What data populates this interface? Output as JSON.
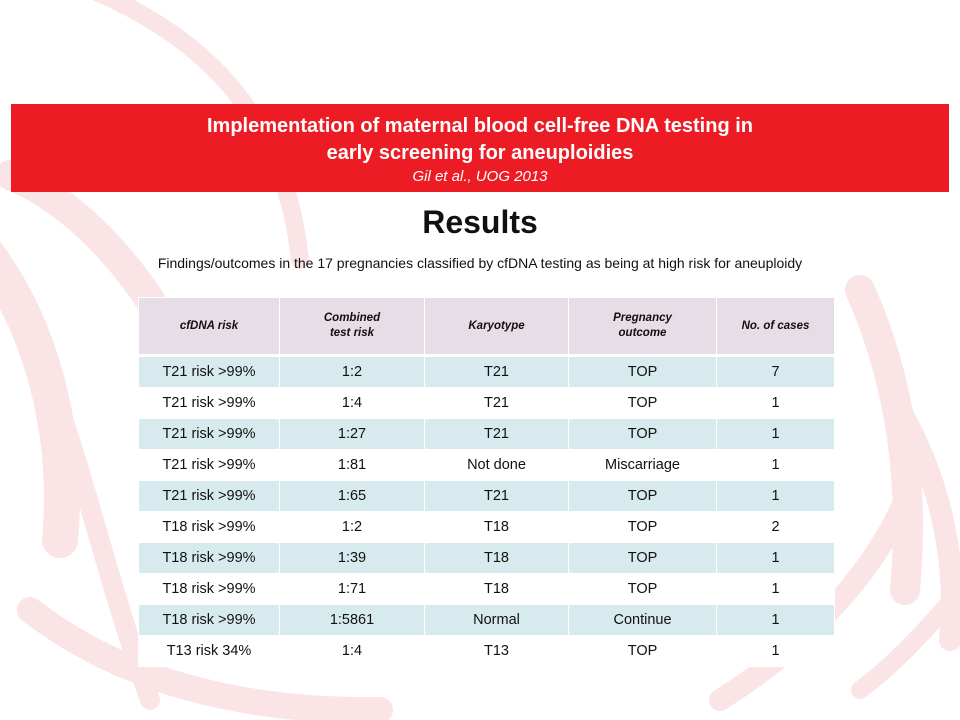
{
  "banner": {
    "title_line1": "Implementation of maternal blood cell-free DNA testing in",
    "title_line2": "early screening for aneuploidies",
    "citation": "Gil et al., UOG 2013"
  },
  "heading": "Results",
  "subtitle": "Findings/outcomes in the 17 pregnancies classified by cfDNA testing as being at high risk for aneuploidy",
  "table": {
    "headers": [
      {
        "line1": "cfDNA risk",
        "line2": ""
      },
      {
        "line1": "Combined",
        "line2": "test risk"
      },
      {
        "line1": "Karyotype",
        "line2": ""
      },
      {
        "line1": "Pregnancy",
        "line2": "outcome"
      },
      {
        "line1": "No. of cases",
        "line2": ""
      }
    ],
    "rows": [
      [
        "T21 risk >99%",
        "1:2",
        "T21",
        "TOP",
        "7"
      ],
      [
        "T21 risk >99%",
        "1:4",
        "T21",
        "TOP",
        "1"
      ],
      [
        "T21 risk >99%",
        "1:27",
        "T21",
        "TOP",
        "1"
      ],
      [
        "T21 risk >99%",
        "1:81",
        "Not done",
        "Miscarriage",
        "1"
      ],
      [
        "T21 risk >99%",
        "1:65",
        "T21",
        "TOP",
        "1"
      ],
      [
        "T18 risk >99%",
        "1:2",
        "T18",
        "TOP",
        "2"
      ],
      [
        "T18 risk >99%",
        "1:39",
        "T18",
        "TOP",
        "1"
      ],
      [
        "T18 risk >99%",
        "1:71",
        "T18",
        "TOP",
        "1"
      ],
      [
        "T18 risk >99%",
        "1:5861",
        "Normal",
        "Continue",
        "1"
      ],
      [
        "T13 risk 34%",
        "1:4",
        "T13",
        "TOP",
        "1"
      ]
    ]
  },
  "colors": {
    "banner_red": "#ed1c24",
    "header_bg": "#e6dde6",
    "stripe_bg": "#d7ebee",
    "arc_tint": "#fbe4e6"
  }
}
